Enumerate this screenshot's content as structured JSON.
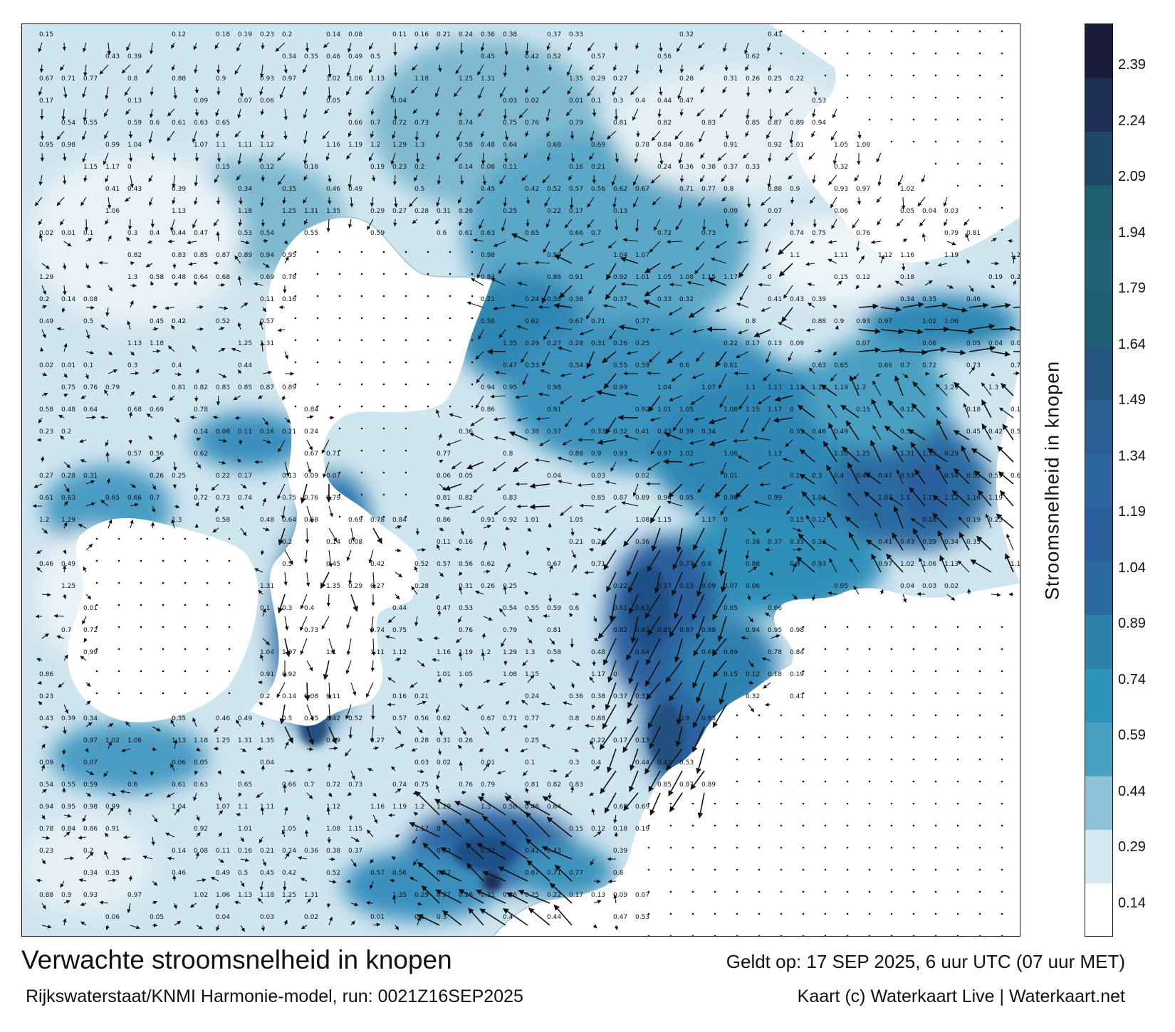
{
  "title": "Verwachte stroomsnelheid in knopen",
  "valid_time": "Geldt op: 17 SEP 2025, 6 uur UTC (07 uur MET)",
  "model_run": "Rijkswaterstaat/KNMI Harmonie-model, run: 0021Z16SEP2025",
  "copyright": "Kaart (c) Waterkaart Live | Waterkaart.net",
  "colorbar": {
    "title": "Stroomsnelheid in knopen",
    "ticks": [
      "2.39",
      "2.24",
      "2.09",
      "1.94",
      "1.79",
      "1.64",
      "1.49",
      "1.34",
      "1.19",
      "1.04",
      "0.89",
      "0.74",
      "0.59",
      "0.44",
      "0.29",
      "0.14"
    ],
    "band_colors": [
      "#1b1b3a",
      "#1e2f56",
      "#1f4868",
      "#1f5e6e",
      "#216178",
      "#1d5f72",
      "#25567f",
      "#2a5f93",
      "#2b64a0",
      "#2a5f9e",
      "#2a6aa0",
      "#2d80a7",
      "#2e93b8",
      "#4aa0c2",
      "#8ec2d8",
      "#d6e8f0",
      "#ffffff"
    ]
  },
  "map": {
    "land_color": "#ffffff",
    "low_speed_color": "#d9ebf3",
    "high_speed_color": "#2a5f9e",
    "arrow_color": "#111111"
  },
  "speed_labels": [
    {
      "t": "0.15"
    },
    {
      "t": "0.12"
    },
    {
      "t": "0.18"
    },
    {
      "t": "0.19"
    },
    {
      "t": "0.23"
    },
    {
      "t": "0.2"
    },
    {
      "t": "0.14"
    },
    {
      "t": "0.08"
    },
    {
      "t": "0.11"
    },
    {
      "t": "0.16"
    },
    {
      "t": "0.21"
    },
    {
      "t": "0.24"
    },
    {
      "t": "0.36"
    },
    {
      "t": "0.38"
    },
    {
      "t": "0.37"
    },
    {
      "t": "0.33"
    },
    {
      "t": "0.32"
    },
    {
      "t": "0.41"
    },
    {
      "t": "0.43"
    },
    {
      "t": "0.39"
    },
    {
      "t": "0.34"
    },
    {
      "t": "0.35"
    },
    {
      "t": "0.46"
    },
    {
      "t": "0.49"
    },
    {
      "t": "0.5"
    },
    {
      "t": "0.45"
    },
    {
      "t": "0.42"
    },
    {
      "t": "0.52"
    },
    {
      "t": "0.57"
    },
    {
      "t": "0.56"
    },
    {
      "t": "0.62"
    },
    {
      "t": "0.67"
    },
    {
      "t": "0.71"
    },
    {
      "t": "0.77"
    },
    {
      "t": "0.8"
    },
    {
      "t": "0.88"
    },
    {
      "t": "0.9"
    },
    {
      "t": "0.93"
    },
    {
      "t": "0.97"
    },
    {
      "t": "1.02"
    },
    {
      "t": "1.06"
    },
    {
      "t": "1.13"
    },
    {
      "t": "1.18"
    },
    {
      "t": "1.25"
    },
    {
      "t": "1.31"
    },
    {
      "t": "1.35"
    },
    {
      "t": "0.29"
    },
    {
      "t": "0.27"
    },
    {
      "t": "0.28"
    },
    {
      "t": "0.31"
    },
    {
      "t": "0.26"
    },
    {
      "t": "0.25"
    },
    {
      "t": "0.22"
    },
    {
      "t": "0.17"
    },
    {
      "t": "0.13"
    },
    {
      "t": "0.09"
    },
    {
      "t": "0.07"
    },
    {
      "t": "0.06"
    },
    {
      "t": "0.05"
    },
    {
      "t": "0.04"
    },
    {
      "t": "0.03"
    },
    {
      "t": "0.02"
    },
    {
      "t": "0.01"
    },
    {
      "t": "0.1"
    },
    {
      "t": "0.3"
    },
    {
      "t": "0.4"
    },
    {
      "t": "0.44"
    },
    {
      "t": "0.47"
    },
    {
      "t": "0.53"
    },
    {
      "t": "0.54"
    },
    {
      "t": "0.55"
    },
    {
      "t": "0.59"
    },
    {
      "t": "0.6"
    },
    {
      "t": "0.61"
    },
    {
      "t": "0.63"
    },
    {
      "t": "0.65"
    },
    {
      "t": "0.66"
    },
    {
      "t": "0.7"
    },
    {
      "t": "0.72"
    },
    {
      "t": "0.73"
    },
    {
      "t": "0.74"
    },
    {
      "t": "0.75"
    },
    {
      "t": "0.76"
    },
    {
      "t": "0.79"
    },
    {
      "t": "0.81"
    },
    {
      "t": "0.82"
    },
    {
      "t": "0.83"
    },
    {
      "t": "0.85"
    },
    {
      "t": "0.87"
    },
    {
      "t": "0.89"
    },
    {
      "t": "0.94"
    },
    {
      "t": "0.95"
    },
    {
      "t": "0.98"
    },
    {
      "t": "0.99"
    },
    {
      "t": "1.04"
    },
    {
      "t": "1.07"
    },
    {
      "t": "1.1"
    },
    {
      "t": "1.11"
    },
    {
      "t": "1.12"
    },
    {
      "t": "1.16"
    },
    {
      "t": "1.19"
    },
    {
      "t": "1.2"
    },
    {
      "t": "1.29"
    },
    {
      "t": "1.3"
    },
    {
      "t": "0.58"
    },
    {
      "t": "0.48"
    },
    {
      "t": "0.64"
    },
    {
      "t": "0.68"
    },
    {
      "t": "0.69"
    },
    {
      "t": "0.78"
    },
    {
      "t": "0.84"
    },
    {
      "t": "0.86"
    },
    {
      "t": "0.91"
    },
    {
      "t": "0.92"
    },
    {
      "t": "1.01"
    },
    {
      "t": "1.05"
    },
    {
      "t": "1.08"
    },
    {
      "t": "1.15"
    },
    {
      "t": "1.17"
    },
    {
      "t": "0"
    }
  ]
}
